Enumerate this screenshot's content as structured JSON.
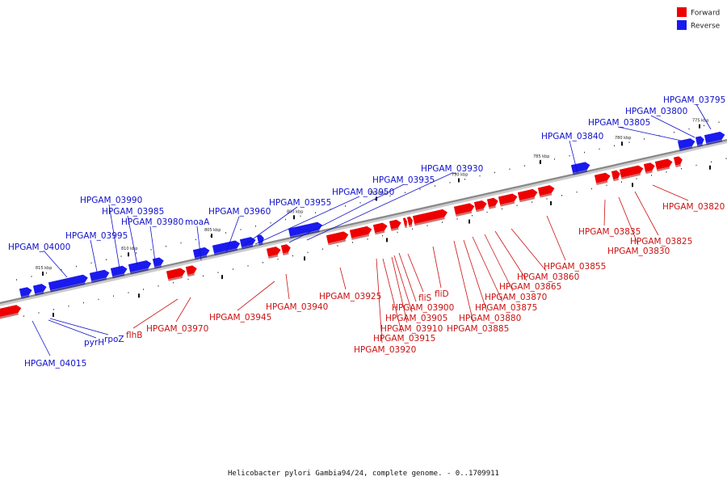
{
  "title": "Helicobacter pylori Gambia94/24, complete genome. - 0..1709911",
  "colors": {
    "forward": "#ee0000",
    "reverse": "#1a1aee",
    "forward_edge": "#a00000",
    "reverse_edge": "#0000a0",
    "leader_forward": "#cc1111",
    "leader_reverse": "#1111cc",
    "backbone": "#888888"
  },
  "legend": [
    {
      "label": "Forward",
      "strand": "forward"
    },
    {
      "label": "Reverse",
      "strand": "reverse"
    }
  ],
  "ticks": [
    "815 kbp",
    "810 kbp",
    "805 kbp",
    "800 kbp",
    "795 kbp",
    "790 kbp",
    "785 kbp",
    "780 kbp",
    "775 kbp"
  ],
  "labels": [
    {
      "text": "HPGAM_04000",
      "strand": "reverse"
    },
    {
      "text": "HPGAM_03995",
      "strand": "reverse"
    },
    {
      "text": "HPGAM_03990",
      "strand": "reverse"
    },
    {
      "text": "HPGAM_03985",
      "strand": "reverse"
    },
    {
      "text": "HPGAM_03980",
      "strand": "reverse"
    },
    {
      "text": "moaA",
      "strand": "reverse"
    },
    {
      "text": "HPGAM_03960",
      "strand": "reverse"
    },
    {
      "text": "HPGAM_03955",
      "strand": "reverse"
    },
    {
      "text": "HPGAM_03950",
      "strand": "reverse"
    },
    {
      "text": "HPGAM_03935",
      "strand": "reverse"
    },
    {
      "text": "HPGAM_03930",
      "strand": "reverse"
    },
    {
      "text": "HPGAM_03840",
      "strand": "reverse"
    },
    {
      "text": "HPGAM_03805",
      "strand": "reverse"
    },
    {
      "text": "HPGAM_03800",
      "strand": "reverse"
    },
    {
      "text": "HPGAM_03795",
      "strand": "reverse"
    },
    {
      "text": "HPGAM_04015",
      "strand": "reverse"
    },
    {
      "text": "pyrH",
      "strand": "reverse"
    },
    {
      "text": "rpoZ",
      "strand": "reverse"
    },
    {
      "text": "flhB",
      "strand": "forward"
    },
    {
      "text": "HPGAM_03970",
      "strand": "forward"
    },
    {
      "text": "HPGAM_03945",
      "strand": "forward"
    },
    {
      "text": "HPGAM_03940",
      "strand": "forward"
    },
    {
      "text": "HPGAM_03925",
      "strand": "forward"
    },
    {
      "text": "HPGAM_03920",
      "strand": "forward"
    },
    {
      "text": "HPGAM_03915",
      "strand": "forward"
    },
    {
      "text": "HPGAM_03910",
      "strand": "forward"
    },
    {
      "text": "HPGAM_03905",
      "strand": "forward"
    },
    {
      "text": "HPGAM_03900",
      "strand": "forward"
    },
    {
      "text": "fliS",
      "strand": "forward"
    },
    {
      "text": "fliD",
      "strand": "forward"
    },
    {
      "text": "HPGAM_03885",
      "strand": "forward"
    },
    {
      "text": "HPGAM_03880",
      "strand": "forward"
    },
    {
      "text": "HPGAM_03875",
      "strand": "forward"
    },
    {
      "text": "HPGAM_03870",
      "strand": "forward"
    },
    {
      "text": "HPGAM_03865",
      "strand": "forward"
    },
    {
      "text": "HPGAM_03860",
      "strand": "forward"
    },
    {
      "text": "HPGAM_03855",
      "strand": "forward"
    },
    {
      "text": "HPGAM_03835",
      "strand": "forward"
    },
    {
      "text": "HPGAM_03830",
      "strand": "forward"
    },
    {
      "text": "HPGAM_03825",
      "strand": "forward"
    },
    {
      "text": "HPGAM_03820",
      "strand": "forward"
    }
  ],
  "genes": {
    "reverse": [
      "r1",
      "r2",
      "r3",
      "r4",
      "r5",
      "r6",
      "r7",
      "r8",
      "r9",
      "r10",
      "r11",
      "r12",
      "r13",
      "r14",
      "r15",
      "r16"
    ],
    "forward": [
      "f1",
      "f2",
      "f3",
      "f4",
      "f5",
      "f6",
      "f7",
      "f8",
      "f9",
      "f10",
      "f11",
      "f12",
      "f13",
      "f14",
      "f15",
      "f16",
      "f17",
      "f18",
      "f19",
      "f20",
      "f21",
      "f22",
      "f23",
      "f24",
      "f25",
      "f26",
      "f27"
    ]
  }
}
